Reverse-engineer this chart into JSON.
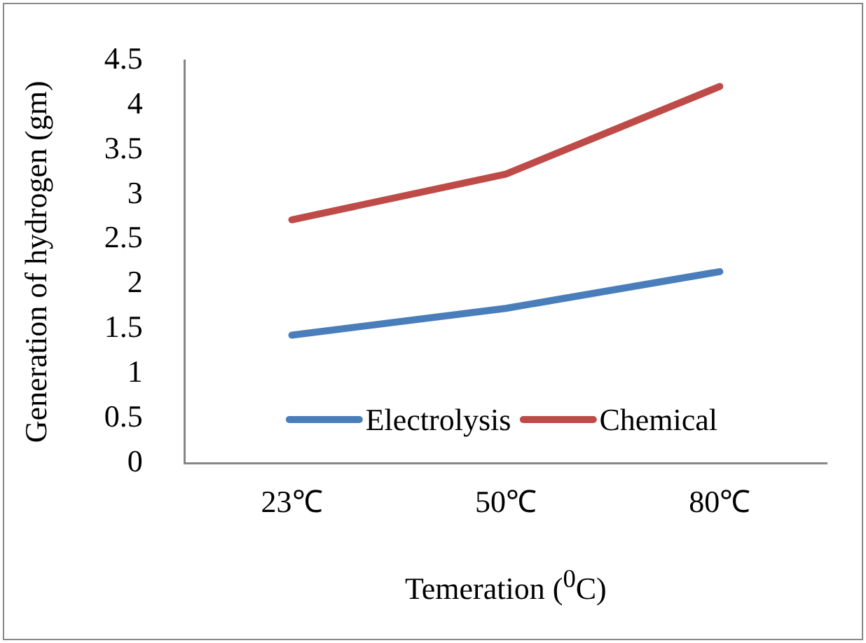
{
  "chart_data": {
    "type": "line",
    "xlabel": "Temeration ($^{0}$C)",
    "ylabel": "Generation of hydrogen (gm)",
    "categories": [
      "23℃",
      "50℃",
      "80℃"
    ],
    "series": [
      {
        "name": "Electrolysis",
        "color": "#4a7ebb",
        "values": [
          1.43,
          1.73,
          2.14
        ]
      },
      {
        "name": "Chemical",
        "color": "#be4b48",
        "values": [
          2.72,
          3.23,
          4.21
        ]
      }
    ],
    "ylim": [
      0,
      4.5
    ],
    "yticks": [
      0,
      0.5,
      1,
      1.5,
      2,
      2.5,
      3,
      3.5,
      4,
      4.5
    ],
    "grid": false,
    "legend": "bottom",
    "marker": "none",
    "line_style": "solid"
  }
}
